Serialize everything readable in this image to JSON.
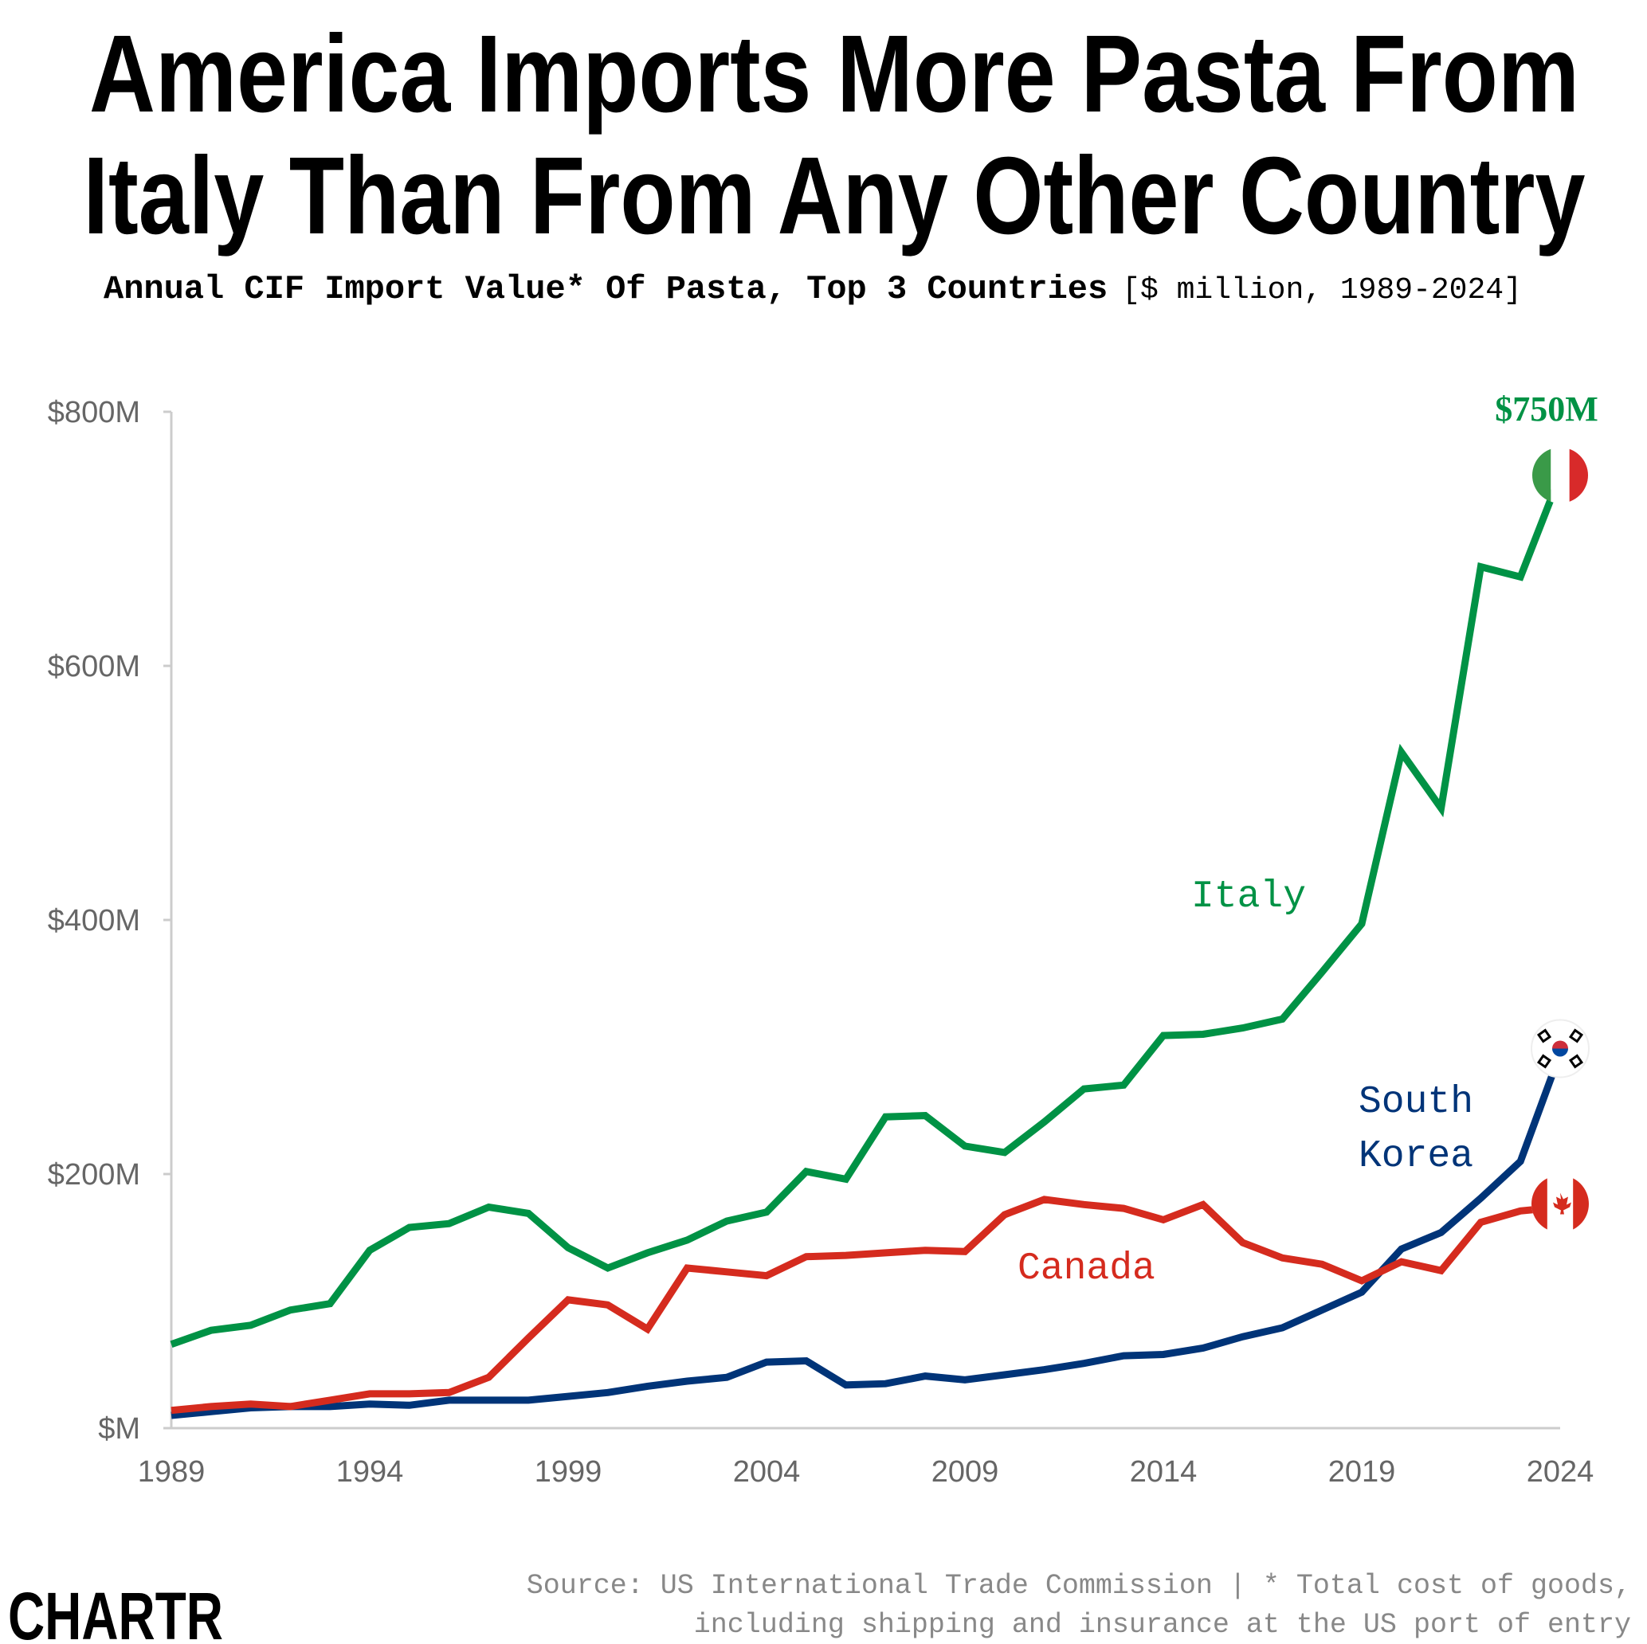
{
  "title_lines": [
    "America Imports More Pasta From",
    "Italy Than From Any Other Country"
  ],
  "subtitle": "Annual CIF Import Value* Of Pasta, Top 3 Countries",
  "subtitle_units": "[$ million, 1989-2024]",
  "footer_lines": [
    "Source: US International Trade Commission | * Total cost of goods,",
    "including shipping and insurance at the US port of entry"
  ],
  "logo": "CHARTR",
  "chart_data": {
    "type": "line",
    "x": [
      1989,
      1990,
      1991,
      1992,
      1993,
      1994,
      1995,
      1996,
      1997,
      1998,
      1999,
      2000,
      2001,
      2002,
      2003,
      2004,
      2005,
      2006,
      2007,
      2008,
      2009,
      2010,
      2011,
      2012,
      2013,
      2014,
      2015,
      2016,
      2017,
      2018,
      2019,
      2020,
      2021,
      2022,
      2023,
      2024
    ],
    "xticks": [
      "1989",
      "1994",
      "1999",
      "2004",
      "2009",
      "2014",
      "2019",
      "2024"
    ],
    "yticks": [
      {
        "value": 0,
        "label": "$M"
      },
      {
        "value": 200,
        "label": "$200M"
      },
      {
        "value": 400,
        "label": "$400M"
      },
      {
        "value": 600,
        "label": "$600M"
      },
      {
        "value": 800,
        "label": "$800M"
      }
    ],
    "ylim": [
      0,
      800
    ],
    "xlim": [
      1989,
      2024
    ],
    "grid": false,
    "series": [
      {
        "name": "Italy",
        "color": "#009245",
        "flag": "italy-flag",
        "end_label": "$750M",
        "values": [
          66,
          77,
          81,
          93,
          98,
          140,
          158,
          161,
          174,
          169,
          142,
          126,
          138,
          148,
          163,
          170,
          202,
          196,
          245,
          246,
          222,
          217,
          241,
          267,
          270,
          309,
          310,
          315,
          322,
          359,
          397,
          532,
          488,
          678,
          670,
          750
        ]
      },
      {
        "name": "Canada",
        "color": "#D52B1E",
        "flag": "canada-flag",
        "values": [
          14,
          17,
          19,
          17,
          22,
          27,
          27,
          28,
          40,
          71,
          101,
          97,
          78,
          126,
          123,
          120,
          135,
          136,
          138,
          140,
          139,
          168,
          180,
          176,
          173,
          164,
          176,
          146,
          134,
          129,
          116,
          131,
          124,
          162,
          171,
          174
        ]
      },
      {
        "name": "South Korea",
        "label_lines": [
          "South",
          "Korea"
        ],
        "color": "#003478",
        "flag": "south-korea-flag",
        "values": [
          10,
          13,
          16,
          17,
          17,
          19,
          18,
          22,
          22,
          22,
          25,
          28,
          33,
          37,
          40,
          52,
          53,
          34,
          35,
          41,
          38,
          42,
          46,
          51,
          57,
          58,
          63,
          72,
          79,
          93,
          107,
          141,
          154,
          181,
          210,
          295
        ]
      }
    ]
  }
}
